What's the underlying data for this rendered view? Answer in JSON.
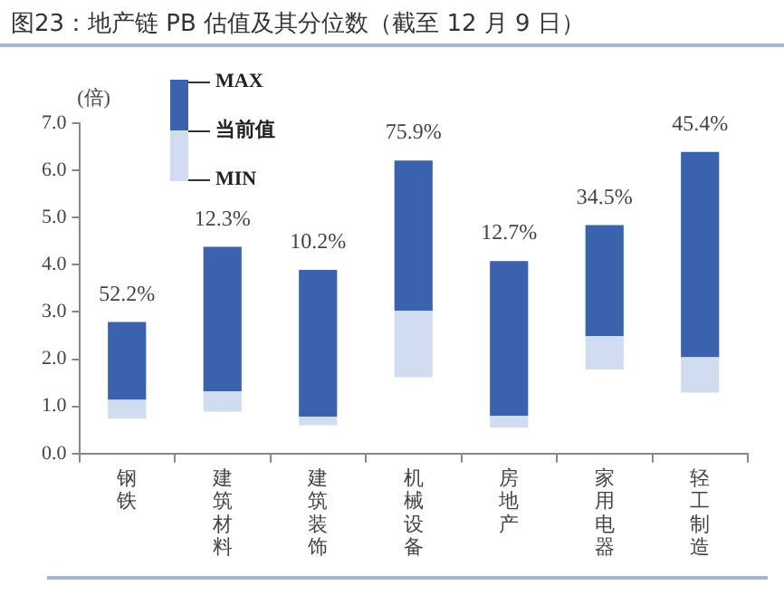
{
  "chart_data": {
    "type": "bar",
    "title": "图23：地产链 PB 估值及其分位数（截至 12 月 9 日）",
    "ylabel": "(倍)",
    "categories": [
      "钢铁",
      "建筑材料",
      "建筑装饰",
      "机械设备",
      "房地产",
      "家用电器",
      "轻工制造"
    ],
    "series": [
      {
        "color": "#d0dcef",
        "base": [
          0.74,
          0.89,
          0.6,
          1.62,
          0.55,
          1.78,
          1.29
        ],
        "values": [
          0.4,
          0.43,
          0.18,
          1.41,
          0.25,
          0.71,
          0.75
        ]
      },
      {
        "color": "#3a62ad",
        "base": [
          1.14,
          1.32,
          0.78,
          3.03,
          0.8,
          2.49,
          2.04
        ],
        "values": [
          1.65,
          3.06,
          3.11,
          3.18,
          3.28,
          2.35,
          4.35
        ]
      }
    ],
    "annotations": [
      "MAX",
      "当前值",
      "MIN",
      {
        "text": "52.2%",
        "x": "钢铁",
        "y": 2.79
      },
      {
        "text": "12.3%",
        "x": "建筑材料",
        "y": 4.38
      },
      {
        "text": "10.2%",
        "x": "建筑装饰",
        "y": 3.89
      },
      {
        "text": "75.9%",
        "x": "机械设备",
        "y": 6.21
      },
      {
        "text": "12.7%",
        "x": "房地产",
        "y": 4.08
      },
      {
        "text": "34.5%",
        "x": "家用电器",
        "y": 4.84
      },
      {
        "text": "45.4%",
        "x": "轻工制造",
        "y": 6.39
      }
    ],
    "ylim": [
      0,
      7
    ],
    "yticks": [
      {
        "value": 0,
        "label": "0.0"
      },
      {
        "value": 1,
        "label": "1.0"
      },
      {
        "value": 2,
        "label": "2.0"
      },
      {
        "value": 3,
        "label": "3.0"
      },
      {
        "value": 4,
        "label": "4.0"
      },
      {
        "value": 5,
        "label": "5.0"
      },
      {
        "value": 6,
        "label": "6.0"
      },
      {
        "value": 7,
        "label": "7.0"
      }
    ],
    "grid": false
  }
}
